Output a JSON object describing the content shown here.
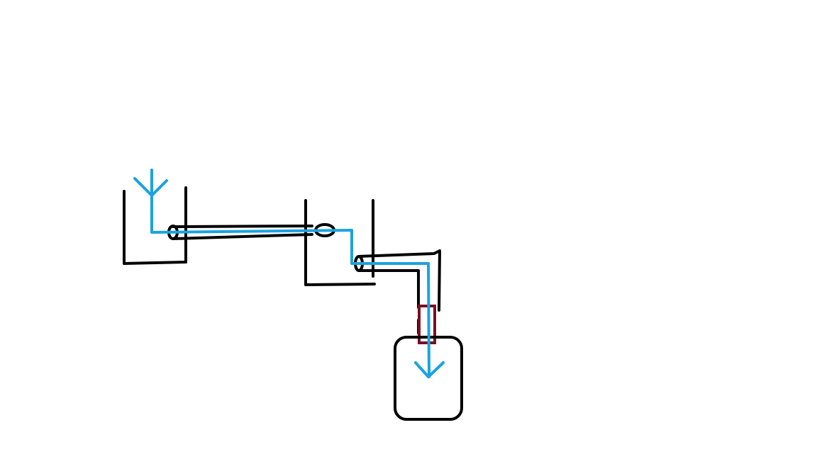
{
  "diagram": {
    "colors": {
      "outline": "#000000",
      "flow": "#1aa3e0",
      "valve": "#7a1020",
      "background": "#ffffff"
    },
    "components": [
      "source-tank",
      "transfer-pipe",
      "intermediate-tank",
      "elbow-pipe",
      "valve",
      "receiving-container"
    ],
    "flow_path": [
      "source-tank",
      "transfer-pipe",
      "intermediate-tank",
      "elbow-pipe",
      "valve",
      "receiving-container"
    ]
  }
}
